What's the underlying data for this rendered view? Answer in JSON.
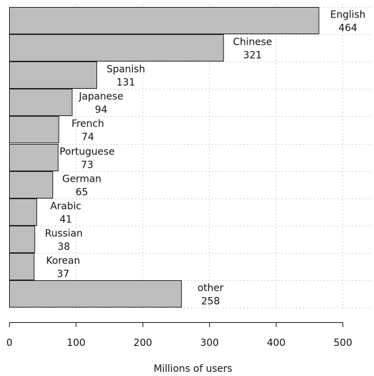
{
  "chart_data": {
    "type": "bar",
    "orientation": "horizontal",
    "categories": [
      "English",
      "Chinese",
      "Spanish",
      "Japanese",
      "French",
      "Portuguese",
      "German",
      "Arabic",
      "Russian",
      "Korean",
      "other"
    ],
    "values": [
      464,
      321,
      131,
      94,
      74,
      73,
      65,
      41,
      38,
      37,
      258
    ],
    "value_labels": [
      "464",
      "321",
      "131",
      "94",
      "74",
      "73",
      "65",
      "41",
      "38",
      "37",
      "258"
    ],
    "title": "",
    "xlabel": "Millions of users",
    "ylabel": "",
    "xlim": [
      0,
      500
    ],
    "x_ticks": [
      0,
      100,
      200,
      300,
      400,
      500
    ],
    "x_tick_labels": [
      "0",
      "100",
      "200",
      "300",
      "400",
      "500"
    ],
    "grid": true,
    "legend": "none",
    "colors": {
      "bar_fill": "#bdbdbd",
      "bar_stroke": "#222222",
      "grid": "#d0d0d0",
      "text": "#111111"
    }
  }
}
